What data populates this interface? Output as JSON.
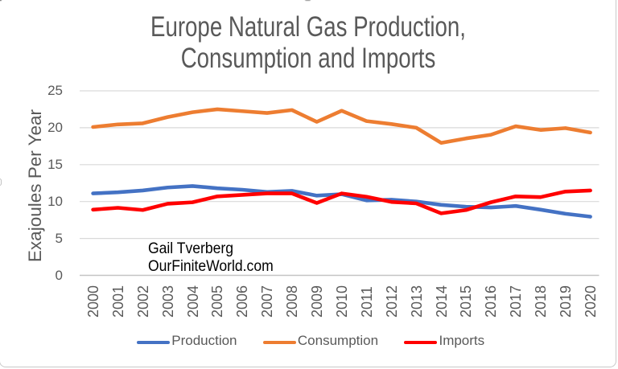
{
  "chart_data": {
    "type": "line",
    "title": "Europe Natural Gas Production, Consumption and Imports",
    "title_line1": "Europe Natural Gas Production,",
    "title_line2": "Consumption and Imports",
    "ylabel": "Exajoules Per Year",
    "xlabel": "",
    "ylim": [
      0,
      25
    ],
    "yticks": [
      "0",
      "5",
      "10",
      "15",
      "20",
      "25"
    ],
    "grid": true,
    "legend_position": "bottom",
    "x": [
      "2000",
      "2001",
      "2002",
      "2003",
      "2004",
      "2005",
      "2006",
      "2007",
      "2008",
      "2009",
      "2010",
      "2011",
      "2012",
      "2013",
      "2014",
      "2015",
      "2016",
      "2017",
      "2018",
      "2019",
      "2020"
    ],
    "series": [
      {
        "name": "Production",
        "color": "#4472C4",
        "values": [
          11.1,
          11.25,
          11.5,
          11.9,
          12.1,
          11.8,
          11.6,
          11.3,
          11.45,
          10.8,
          11.0,
          10.15,
          10.25,
          10.0,
          9.55,
          9.3,
          9.2,
          9.4,
          8.9,
          8.35,
          7.95
        ]
      },
      {
        "name": "Consumption",
        "color": "#ED7D31",
        "values": [
          20.1,
          20.45,
          20.6,
          21.45,
          22.1,
          22.5,
          22.25,
          22.0,
          22.4,
          20.8,
          22.3,
          20.9,
          20.5,
          20.0,
          17.95,
          18.55,
          19.05,
          20.2,
          19.7,
          19.95,
          19.35
        ]
      },
      {
        "name": "Imports",
        "color": "#FF0000",
        "values": [
          8.9,
          9.15,
          8.85,
          9.7,
          9.9,
          10.7,
          10.9,
          11.1,
          11.1,
          9.8,
          11.1,
          10.65,
          9.95,
          9.75,
          8.4,
          8.85,
          9.9,
          10.7,
          10.6,
          11.35,
          11.5
        ]
      }
    ],
    "annotation": {
      "line1": "Gail Tverberg",
      "line2": "OurFiniteWorld.com"
    },
    "colors": {
      "title_text": "#595959",
      "axis_text": "#595959",
      "legend_text": "#595959",
      "annotation_text": "#000000",
      "gridline": "#d9d9d9",
      "axis_line": "#c4c4c4"
    }
  }
}
